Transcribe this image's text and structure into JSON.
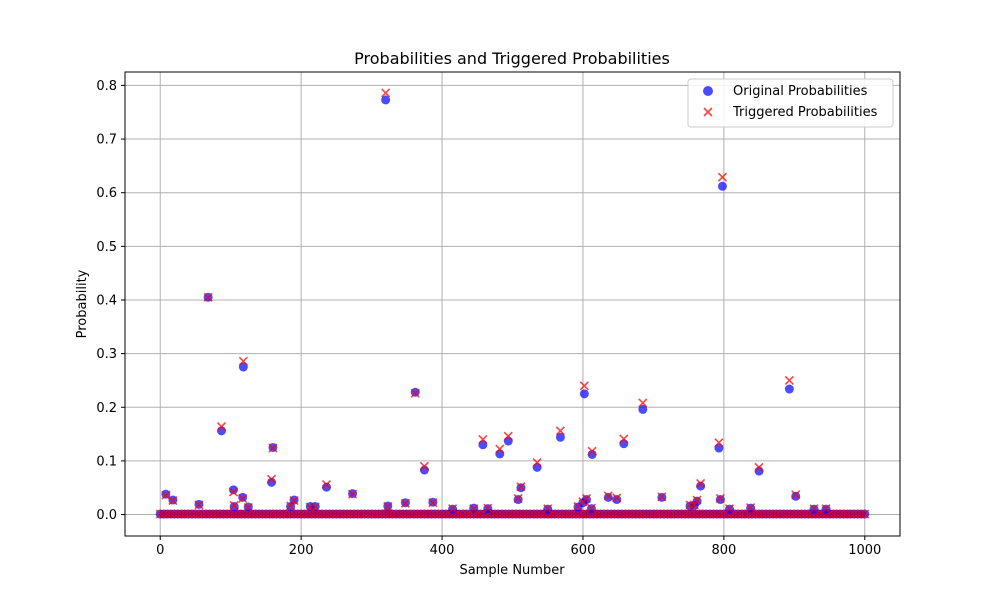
{
  "chart_data": {
    "type": "scatter",
    "title": "Probabilities and Triggered Probabilities",
    "xlabel": "Sample Number",
    "ylabel": "Probability",
    "xlim": [
      -50,
      1050
    ],
    "ylim": [
      -0.04,
      0.825
    ],
    "x_ticks": [
      0,
      200,
      400,
      600,
      800,
      1000
    ],
    "y_ticks": [
      0.0,
      0.1,
      0.2,
      0.3,
      0.4,
      0.5,
      0.6,
      0.7,
      0.8
    ],
    "x_tick_labels": [
      "0",
      "200",
      "400",
      "600",
      "800",
      "1000"
    ],
    "y_tick_labels": [
      "0.0",
      "0.1",
      "0.2",
      "0.3",
      "0.4",
      "0.5",
      "0.6",
      "0.7",
      "0.8"
    ],
    "grid": true,
    "legend_position": "top-right",
    "baseline": {
      "description": "Dense cluster of points for samples 0–1000 with probability near 0",
      "x_start": 0,
      "x_end": 1000,
      "x_step": 5,
      "value": 0.001
    },
    "series": [
      {
        "name": "Original Probabilities",
        "marker": "circle",
        "color": "#0000ff",
        "points": [
          [
            8,
            0.038
          ],
          [
            18,
            0.027
          ],
          [
            55,
            0.019
          ],
          [
            68,
            0.405
          ],
          [
            87,
            0.156
          ],
          [
            104,
            0.046
          ],
          [
            105,
            0.015
          ],
          [
            117,
            0.032
          ],
          [
            118,
            0.275
          ],
          [
            125,
            0.014
          ],
          [
            158,
            0.06
          ],
          [
            160,
            0.125
          ],
          [
            185,
            0.015
          ],
          [
            190,
            0.027
          ],
          [
            213,
            0.015
          ],
          [
            220,
            0.015
          ],
          [
            236,
            0.051
          ],
          [
            273,
            0.039
          ],
          [
            320,
            0.773
          ],
          [
            323,
            0.016
          ],
          [
            348,
            0.022
          ],
          [
            362,
            0.228
          ],
          [
            375,
            0.083
          ],
          [
            387,
            0.023
          ],
          [
            415,
            0.01
          ],
          [
            445,
            0.012
          ],
          [
            458,
            0.13
          ],
          [
            465,
            0.011
          ],
          [
            482,
            0.113
          ],
          [
            494,
            0.137
          ],
          [
            508,
            0.028
          ],
          [
            512,
            0.05
          ],
          [
            535,
            0.088
          ],
          [
            550,
            0.01
          ],
          [
            568,
            0.144
          ],
          [
            593,
            0.014
          ],
          [
            600,
            0.022
          ],
          [
            602,
            0.225
          ],
          [
            605,
            0.028
          ],
          [
            612,
            0.011
          ],
          [
            613,
            0.112
          ],
          [
            636,
            0.032
          ],
          [
            648,
            0.028
          ],
          [
            658,
            0.132
          ],
          [
            685,
            0.196
          ],
          [
            712,
            0.032
          ],
          [
            752,
            0.016
          ],
          [
            758,
            0.017
          ],
          [
            762,
            0.025
          ],
          [
            767,
            0.053
          ],
          [
            793,
            0.124
          ],
          [
            795,
            0.028
          ],
          [
            798,
            0.612
          ],
          [
            808,
            0.01
          ],
          [
            838,
            0.012
          ],
          [
            850,
            0.081
          ],
          [
            893,
            0.234
          ],
          [
            902,
            0.034
          ],
          [
            928,
            0.01
          ],
          [
            945,
            0.01
          ]
        ]
      },
      {
        "name": "Triggered Probabilities",
        "marker": "x",
        "color": "#ff0000",
        "points": [
          [
            8,
            0.036
          ],
          [
            18,
            0.026
          ],
          [
            55,
            0.018
          ],
          [
            68,
            0.405
          ],
          [
            87,
            0.164
          ],
          [
            104,
            0.042
          ],
          [
            105,
            0.017
          ],
          [
            117,
            0.03
          ],
          [
            118,
            0.286
          ],
          [
            125,
            0.013
          ],
          [
            158,
            0.066
          ],
          [
            160,
            0.124
          ],
          [
            185,
            0.016
          ],
          [
            190,
            0.026
          ],
          [
            213,
            0.014
          ],
          [
            220,
            0.014
          ],
          [
            236,
            0.056
          ],
          [
            273,
            0.038
          ],
          [
            320,
            0.786
          ],
          [
            323,
            0.015
          ],
          [
            348,
            0.021
          ],
          [
            362,
            0.226
          ],
          [
            375,
            0.09
          ],
          [
            387,
            0.022
          ],
          [
            415,
            0.011
          ],
          [
            445,
            0.011
          ],
          [
            458,
            0.14
          ],
          [
            465,
            0.012
          ],
          [
            482,
            0.122
          ],
          [
            494,
            0.146
          ],
          [
            508,
            0.03
          ],
          [
            512,
            0.052
          ],
          [
            535,
            0.097
          ],
          [
            550,
            0.011
          ],
          [
            568,
            0.156
          ],
          [
            593,
            0.015
          ],
          [
            600,
            0.024
          ],
          [
            602,
            0.24
          ],
          [
            605,
            0.03
          ],
          [
            612,
            0.012
          ],
          [
            613,
            0.118
          ],
          [
            636,
            0.035
          ],
          [
            648,
            0.031
          ],
          [
            658,
            0.141
          ],
          [
            685,
            0.208
          ],
          [
            712,
            0.033
          ],
          [
            752,
            0.018
          ],
          [
            758,
            0.018
          ],
          [
            762,
            0.027
          ],
          [
            767,
            0.058
          ],
          [
            793,
            0.134
          ],
          [
            795,
            0.03
          ],
          [
            798,
            0.629
          ],
          [
            808,
            0.011
          ],
          [
            838,
            0.013
          ],
          [
            850,
            0.088
          ],
          [
            893,
            0.25
          ],
          [
            902,
            0.037
          ],
          [
            928,
            0.011
          ],
          [
            945,
            0.011
          ]
        ]
      }
    ]
  }
}
